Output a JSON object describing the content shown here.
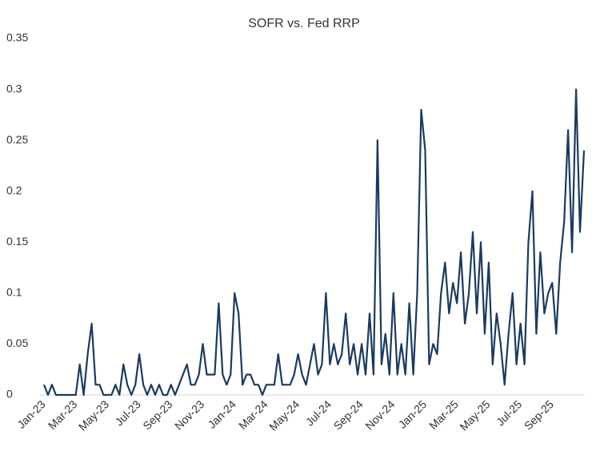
{
  "chart_data": {
    "type": "line",
    "title": "SOFR vs. Fed RRP",
    "categories": [
      "Jan-23",
      null,
      null,
      null,
      null,
      null,
      null,
      null,
      "Mar-23",
      null,
      null,
      null,
      null,
      null,
      null,
      null,
      "May-23",
      null,
      null,
      null,
      null,
      null,
      null,
      null,
      "Jul-23",
      null,
      null,
      null,
      null,
      null,
      null,
      null,
      "Sep-23",
      null,
      null,
      null,
      null,
      null,
      null,
      null,
      "Nov-23",
      null,
      null,
      null,
      null,
      null,
      null,
      null,
      "Jan-24",
      null,
      null,
      null,
      null,
      null,
      null,
      null,
      "Mar-24",
      null,
      null,
      null,
      null,
      null,
      null,
      null,
      "May-24",
      null,
      null,
      null,
      null,
      null,
      null,
      null,
      "Jul-24",
      null,
      null,
      null,
      null,
      null,
      null,
      null,
      "Sep-24",
      null,
      null,
      null,
      null,
      null,
      null,
      null,
      "Nov-24",
      null,
      null,
      null,
      null,
      null,
      null,
      null,
      "Jan-25",
      null,
      null,
      null,
      null,
      null,
      null,
      null,
      "Mar-25",
      null,
      null,
      null,
      null,
      null,
      null,
      null,
      "May-25",
      null,
      null,
      null,
      null,
      null,
      null,
      null,
      "Jul-25",
      null,
      null,
      null,
      null,
      null,
      null,
      null,
      "Sep-25",
      null,
      null,
      null,
      null,
      null,
      null,
      null,
      null
    ],
    "series": [
      {
        "color": "#1c3a5e",
        "values": [
          0.01,
          0,
          0.01,
          0,
          0,
          0,
          0,
          0,
          0,
          0.03,
          0,
          0.04,
          0.07,
          0.01,
          0.01,
          0,
          0,
          0,
          0.01,
          0,
          0.03,
          0.01,
          0,
          0.01,
          0.04,
          0.01,
          0,
          0.01,
          0,
          0.01,
          0,
          0,
          0.01,
          0,
          0.01,
          0.02,
          0.03,
          0.01,
          0.01,
          0.02,
          0.05,
          0.02,
          0.02,
          0.02,
          0.09,
          0.02,
          0.01,
          0.02,
          0.1,
          0.08,
          0.01,
          0.02,
          0.02,
          0.01,
          0.01,
          0,
          0.01,
          0.01,
          0.01,
          0.04,
          0.01,
          0.01,
          0.01,
          0.02,
          0.04,
          0.02,
          0.01,
          0.03,
          0.05,
          0.02,
          0.03,
          0.1,
          0.03,
          0.05,
          0.03,
          0.04,
          0.08,
          0.03,
          0.05,
          0.02,
          0.05,
          0.02,
          0.08,
          0.02,
          0.25,
          0.03,
          0.06,
          0.02,
          0.1,
          0.02,
          0.05,
          0.02,
          0.09,
          0.02,
          0.1,
          0.28,
          0.24,
          0.03,
          0.05,
          0.04,
          0.1,
          0.13,
          0.08,
          0.11,
          0.09,
          0.14,
          0.07,
          0.1,
          0.16,
          0.08,
          0.15,
          0.06,
          0.13,
          0.03,
          0.08,
          0.05,
          0.01,
          0.06,
          0.1,
          0.03,
          0.07,
          0.03,
          0.15,
          0.2,
          0.06,
          0.14,
          0.08,
          0.1,
          0.11,
          0.06,
          0.13,
          0.17,
          0.26,
          0.14,
          0.3,
          0.16,
          0.24
        ]
      }
    ],
    "ylim": [
      0,
      0.35
    ],
    "yticks": [
      0,
      0.05,
      0.1,
      0.15,
      0.2,
      0.25,
      0.3,
      0.35
    ],
    "grid": false
  }
}
